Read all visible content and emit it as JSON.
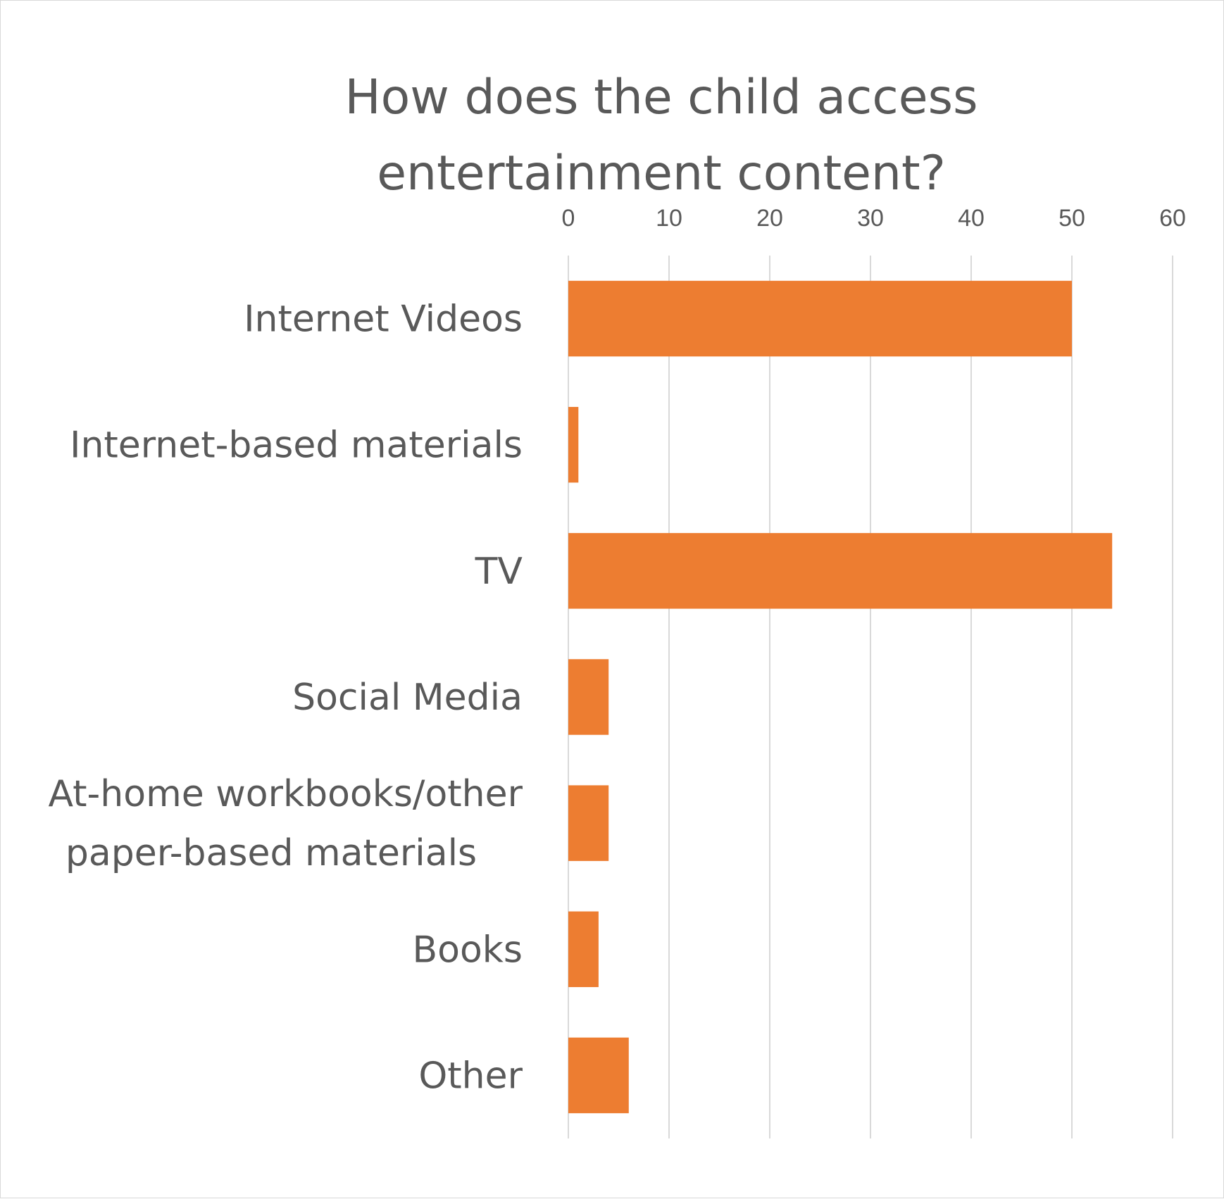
{
  "chart_data": {
    "type": "bar",
    "orientation": "horizontal",
    "title_lines": [
      "How does the child access",
      "entertainment content?"
    ],
    "categories": [
      [
        "Internet Videos"
      ],
      [
        "Internet-based materials"
      ],
      [
        "TV"
      ],
      [
        "Social Media"
      ],
      [
        "At-home workbooks/other",
        "paper-based materials"
      ],
      [
        "Books"
      ],
      [
        "Other"
      ]
    ],
    "values": [
      50,
      1,
      54,
      4,
      4,
      3,
      6
    ],
    "xlim": [
      0,
      60
    ],
    "ticks": [
      0,
      10,
      20,
      30,
      40,
      50,
      60
    ],
    "tick_labels": [
      "0",
      "10",
      "20",
      "30",
      "40",
      "50",
      "60"
    ],
    "axis_position": "top",
    "grid": true,
    "legend": "none",
    "bar_color": "#ED7D31",
    "grid_color": "#D9D9D9",
    "text_color": "#595959"
  }
}
